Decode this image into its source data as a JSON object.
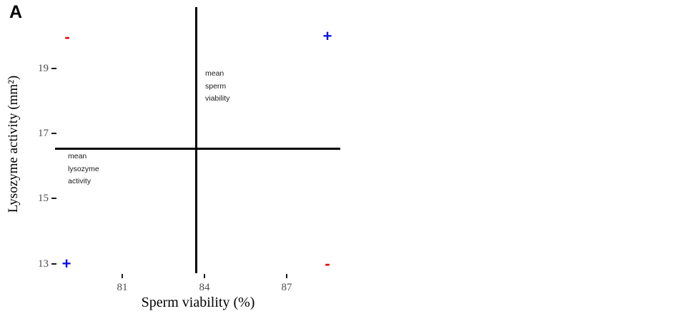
{
  "chart_data": {
    "type": "scatter",
    "panel_label": "A",
    "title": "",
    "xlabel": "Sperm viability (%)",
    "ylabel": "Lysozyme activity (mm²)",
    "x_ticks": [
      "81",
      "84",
      "87"
    ],
    "y_ticks": [
      "19",
      "17",
      "15",
      "13"
    ],
    "xlim": [
      78.5,
      89
    ],
    "ylim": [
      12.7,
      20.9
    ],
    "grid": false,
    "series": [],
    "reference_lines": {
      "vertical": {
        "x": 83.7,
        "label": "mean\nsperm\nviability"
      },
      "horizontal": {
        "y": 16.5,
        "label": "mean\nlysozyme\nactivity"
      }
    },
    "quadrant_signs": [
      {
        "position": "top-left",
        "symbol": "-",
        "color": "#ee0000"
      },
      {
        "position": "top-right",
        "symbol": "+",
        "color": "#0f0fee"
      },
      {
        "position": "bottom-left",
        "symbol": "+",
        "color": "#0f0fee"
      },
      {
        "position": "bottom-right",
        "symbol": "-",
        "color": "#ee0000"
      }
    ],
    "colors": {
      "positive": "#0f0fee",
      "negative": "#ee0000",
      "tick_text": "#4d4d4d",
      "line": "#000000",
      "background": "#ffffff"
    },
    "legend": null
  }
}
